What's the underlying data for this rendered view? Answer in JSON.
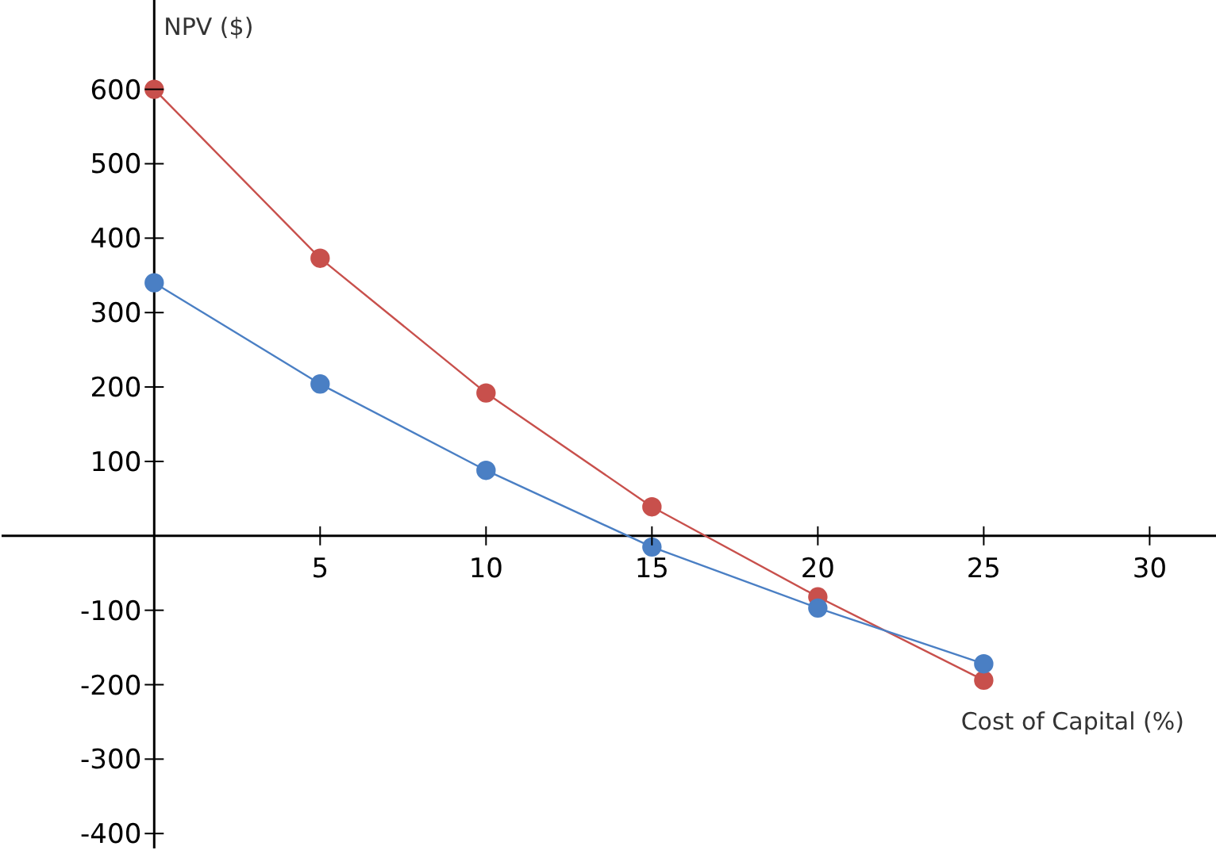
{
  "chart_data": {
    "type": "line",
    "xlabel": "Cost of Capital (%)",
    "ylabel": "NPV ($)",
    "x": [
      0,
      5,
      10,
      15,
      20,
      25
    ],
    "series": [
      {
        "color": "#c8504c",
        "values": [
          600,
          373,
          192,
          39,
          -82,
          -194
        ]
      },
      {
        "color": "#4a7fc4",
        "values": [
          340,
          204,
          88,
          -15,
          -97,
          -172
        ]
      }
    ],
    "xlim": [
      -4.6,
      32
    ],
    "xticks": [
      5,
      10,
      15,
      20,
      25,
      30
    ],
    "ylim": [
      -420,
      720
    ],
    "yticks": [
      -400,
      -300,
      -200,
      -100,
      100,
      200,
      300,
      400,
      500,
      600
    ],
    "marker": "circle",
    "line_style": "solid"
  }
}
